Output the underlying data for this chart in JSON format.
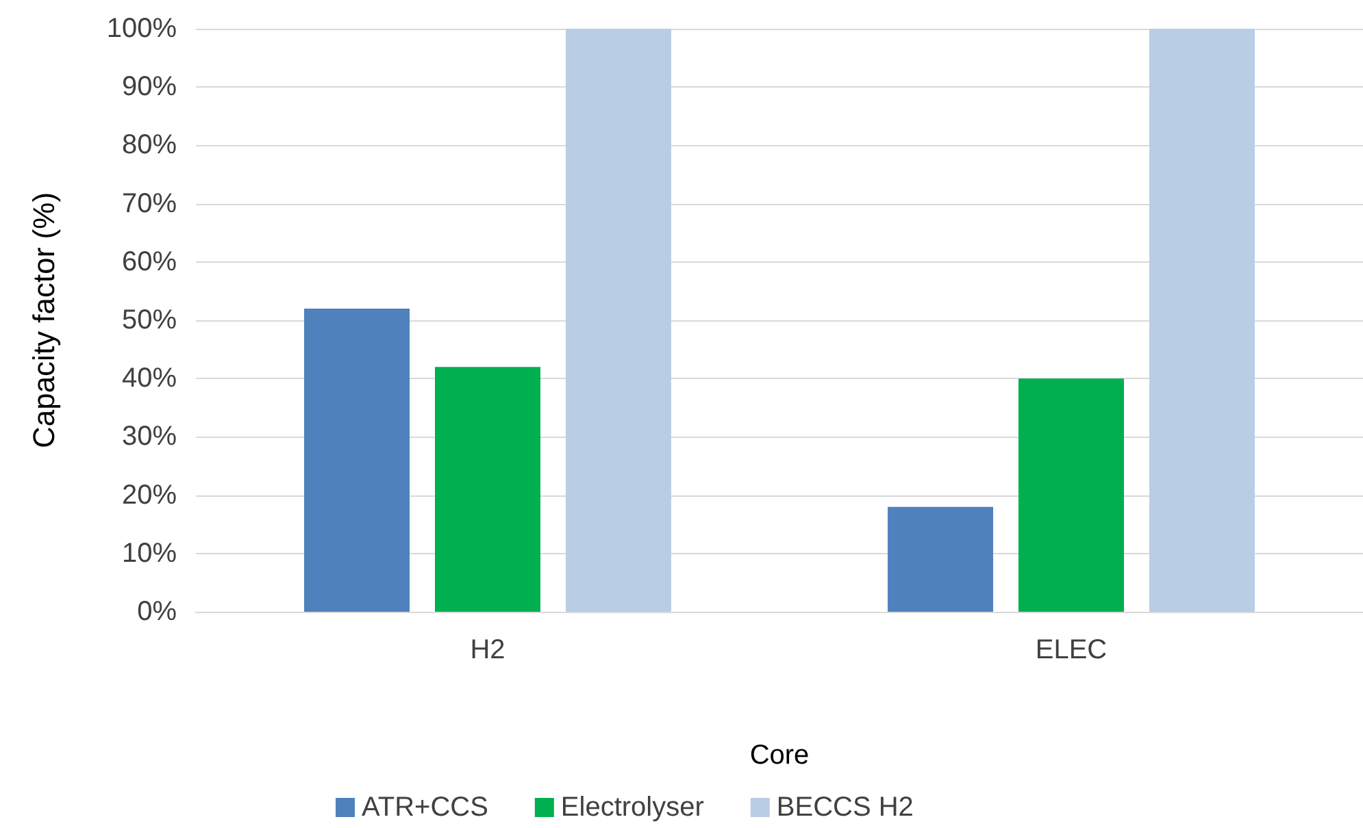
{
  "chart_data": {
    "type": "bar",
    "ylabel": "Capacity factor (%)",
    "xlabel": "Core",
    "categories": [
      "H2",
      "ELEC"
    ],
    "series": [
      {
        "name": "ATR+CCS",
        "color": "#4f81bd",
        "values": [
          52,
          18
        ]
      },
      {
        "name": "Electrolyser",
        "color": "#00b050",
        "values": [
          42,
          40
        ]
      },
      {
        "name": "BECCS H2",
        "color": "#b9cde5",
        "values": [
          100,
          100
        ]
      }
    ],
    "ylim": [
      0,
      100
    ],
    "yticks": [
      {
        "value": 0,
        "label": "0%"
      },
      {
        "value": 10,
        "label": "10%"
      },
      {
        "value": 20,
        "label": "20%"
      },
      {
        "value": 30,
        "label": "30%"
      },
      {
        "value": 40,
        "label": "40%"
      },
      {
        "value": 50,
        "label": "50%"
      },
      {
        "value": 60,
        "label": "60%"
      },
      {
        "value": 70,
        "label": "70%"
      },
      {
        "value": 80,
        "label": "80%"
      },
      {
        "value": 90,
        "label": "90%"
      },
      {
        "value": 100,
        "label": "100%"
      }
    ],
    "grid": "y",
    "legend": "bottom"
  }
}
